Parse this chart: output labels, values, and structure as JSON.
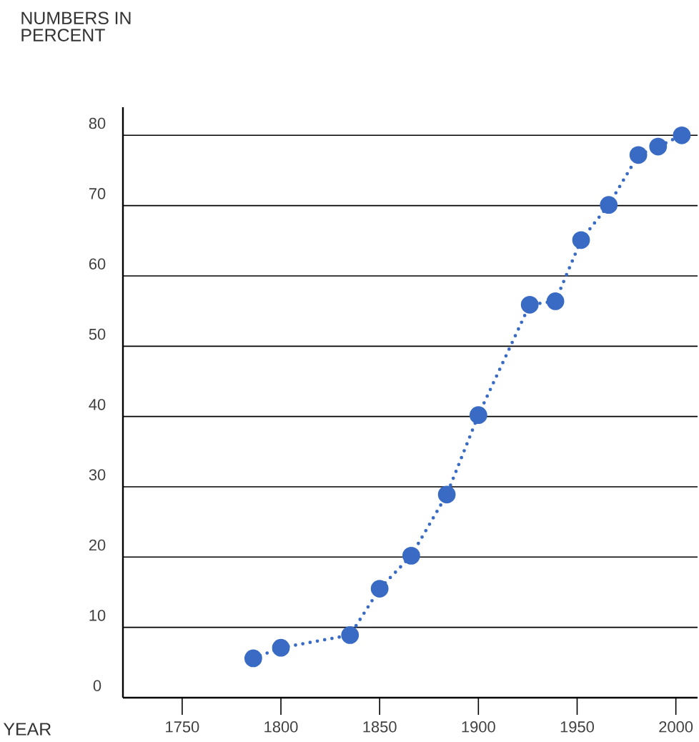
{
  "chart_data": {
    "type": "line",
    "xlabel": "YEAR",
    "ylabel": "NUMBERS IN PERCENT",
    "x": [
      1786,
      1800,
      1835,
      1850,
      1866,
      1884,
      1900,
      1926,
      1939,
      1952,
      1966,
      1981,
      1991,
      2003
    ],
    "series": [
      {
        "color": "#3a6bc4",
        "values": [
          5.6,
          7.1,
          8.9,
          15.5,
          20.2,
          28.9,
          40.2,
          55.9,
          56.4,
          65.1,
          70.1,
          77.2,
          78.4,
          80
        ]
      }
    ],
    "xlim": [
      1720,
      2011
    ],
    "ylim": [
      0,
      84
    ],
    "xticks": [
      1750,
      1800,
      1850,
      1900,
      1950,
      2000
    ],
    "yticks": [
      0,
      10,
      20,
      30,
      40,
      50,
      60,
      70,
      80
    ],
    "grid": "y",
    "marker": "circle",
    "line_style": "dotted"
  }
}
